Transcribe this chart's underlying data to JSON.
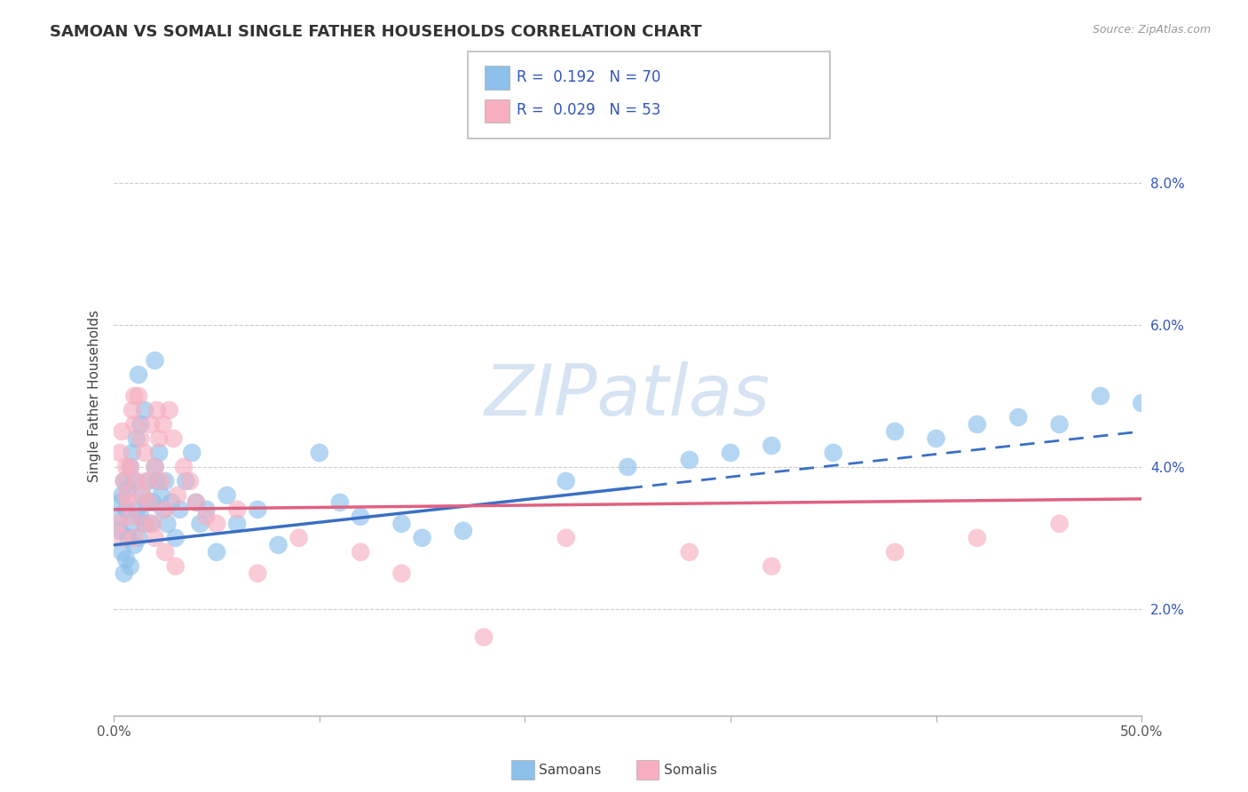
{
  "title": "SAMOAN VS SOMALI SINGLE FATHER HOUSEHOLDS CORRELATION CHART",
  "source": "Source: ZipAtlas.com",
  "ylabel": "Single Father Households",
  "xlim": [
    0.0,
    50.0
  ],
  "ylim": [
    0.5,
    9.5
  ],
  "yticks": [
    2.0,
    4.0,
    6.0,
    8.0
  ],
  "ytick_labels": [
    "2.0%",
    "4.0%",
    "6.0%",
    "8.0%"
  ],
  "xtick_labels": [
    "0.0%",
    "",
    "",
    "",
    "",
    "50.0%"
  ],
  "color_samoan": "#8dc0eb",
  "color_somali": "#f7afc0",
  "color_line_samoan": "#3a6fc4",
  "color_line_somali": "#e06080",
  "line_samoan_x0": 0.0,
  "line_samoan_y0": 2.9,
  "line_samoan_x1": 50.0,
  "line_samoan_y1": 4.5,
  "line_somali_x0": 0.0,
  "line_somali_y0": 3.4,
  "line_somali_x1": 50.0,
  "line_somali_y1": 3.55,
  "solid_end_x": 25.0,
  "watermark_text": "ZIPatlas",
  "watermark_color": "#c5d8ed",
  "legend_r1_text": "R =  0.192   N = 70",
  "legend_r2_text": "R =  0.029   N = 53",
  "legend_color_text": "#3355bb",
  "samoan_x": [
    0.2,
    0.3,
    0.3,
    0.4,
    0.4,
    0.5,
    0.5,
    0.6,
    0.6,
    0.7,
    0.7,
    0.8,
    0.8,
    0.9,
    0.9,
    1.0,
    1.0,
    1.1,
    1.1,
    1.2,
    1.2,
    1.3,
    1.3,
    1.4,
    1.5,
    1.5,
    1.6,
    1.7,
    1.8,
    1.9,
    2.0,
    2.0,
    2.1,
    2.2,
    2.3,
    2.4,
    2.5,
    2.6,
    2.8,
    3.0,
    3.2,
    3.5,
    3.8,
    4.0,
    4.2,
    4.5,
    5.0,
    5.5,
    6.0,
    7.0,
    8.0,
    10.0,
    11.0,
    12.0,
    14.0,
    15.0,
    17.0,
    22.0,
    25.0,
    28.0,
    30.0,
    32.0,
    35.0,
    38.0,
    40.0,
    42.0,
    44.0,
    46.0,
    48.0,
    50.0
  ],
  "samoan_y": [
    3.3,
    3.1,
    3.5,
    2.8,
    3.6,
    2.5,
    3.8,
    2.7,
    3.4,
    3.0,
    3.7,
    2.6,
    4.0,
    3.2,
    4.2,
    2.9,
    3.8,
    3.4,
    4.4,
    3.0,
    5.3,
    3.3,
    4.6,
    3.6,
    3.2,
    4.8,
    3.5,
    3.8,
    3.2,
    3.5,
    4.0,
    5.5,
    3.8,
    4.2,
    3.6,
    3.4,
    3.8,
    3.2,
    3.5,
    3.0,
    3.4,
    3.8,
    4.2,
    3.5,
    3.2,
    3.4,
    2.8,
    3.6,
    3.2,
    3.4,
    2.9,
    4.2,
    3.5,
    3.3,
    3.2,
    3.0,
    3.1,
    3.8,
    4.0,
    4.1,
    4.2,
    4.3,
    4.2,
    4.5,
    4.4,
    4.6,
    4.7,
    4.6,
    5.0,
    4.9
  ],
  "somali_x": [
    0.2,
    0.3,
    0.4,
    0.5,
    0.6,
    0.7,
    0.8,
    0.9,
    1.0,
    1.0,
    1.1,
    1.2,
    1.3,
    1.4,
    1.5,
    1.6,
    1.7,
    1.8,
    1.9,
    2.0,
    2.1,
    2.2,
    2.3,
    2.4,
    2.5,
    2.7,
    2.9,
    3.1,
    3.4,
    3.7,
    4.0,
    4.5,
    5.0,
    6.0,
    7.0,
    9.0,
    12.0,
    14.0,
    18.0,
    22.0,
    28.0,
    32.0,
    38.0,
    42.0,
    46.0,
    0.4,
    0.6,
    0.8,
    1.0,
    1.5,
    2.0,
    2.5,
    3.0
  ],
  "somali_y": [
    3.2,
    4.2,
    4.5,
    3.8,
    4.0,
    3.5,
    3.3,
    4.8,
    3.0,
    4.6,
    3.8,
    5.0,
    4.4,
    3.6,
    4.2,
    3.8,
    3.5,
    4.6,
    3.2,
    4.0,
    4.8,
    4.4,
    3.8,
    4.6,
    3.4,
    4.8,
    4.4,
    3.6,
    4.0,
    3.8,
    3.5,
    3.3,
    3.2,
    3.4,
    2.5,
    3.0,
    2.8,
    2.5,
    1.6,
    3.0,
    2.8,
    2.6,
    2.8,
    3.0,
    3.2,
    3.0,
    3.6,
    4.0,
    5.0,
    3.2,
    3.0,
    2.8,
    2.6
  ]
}
